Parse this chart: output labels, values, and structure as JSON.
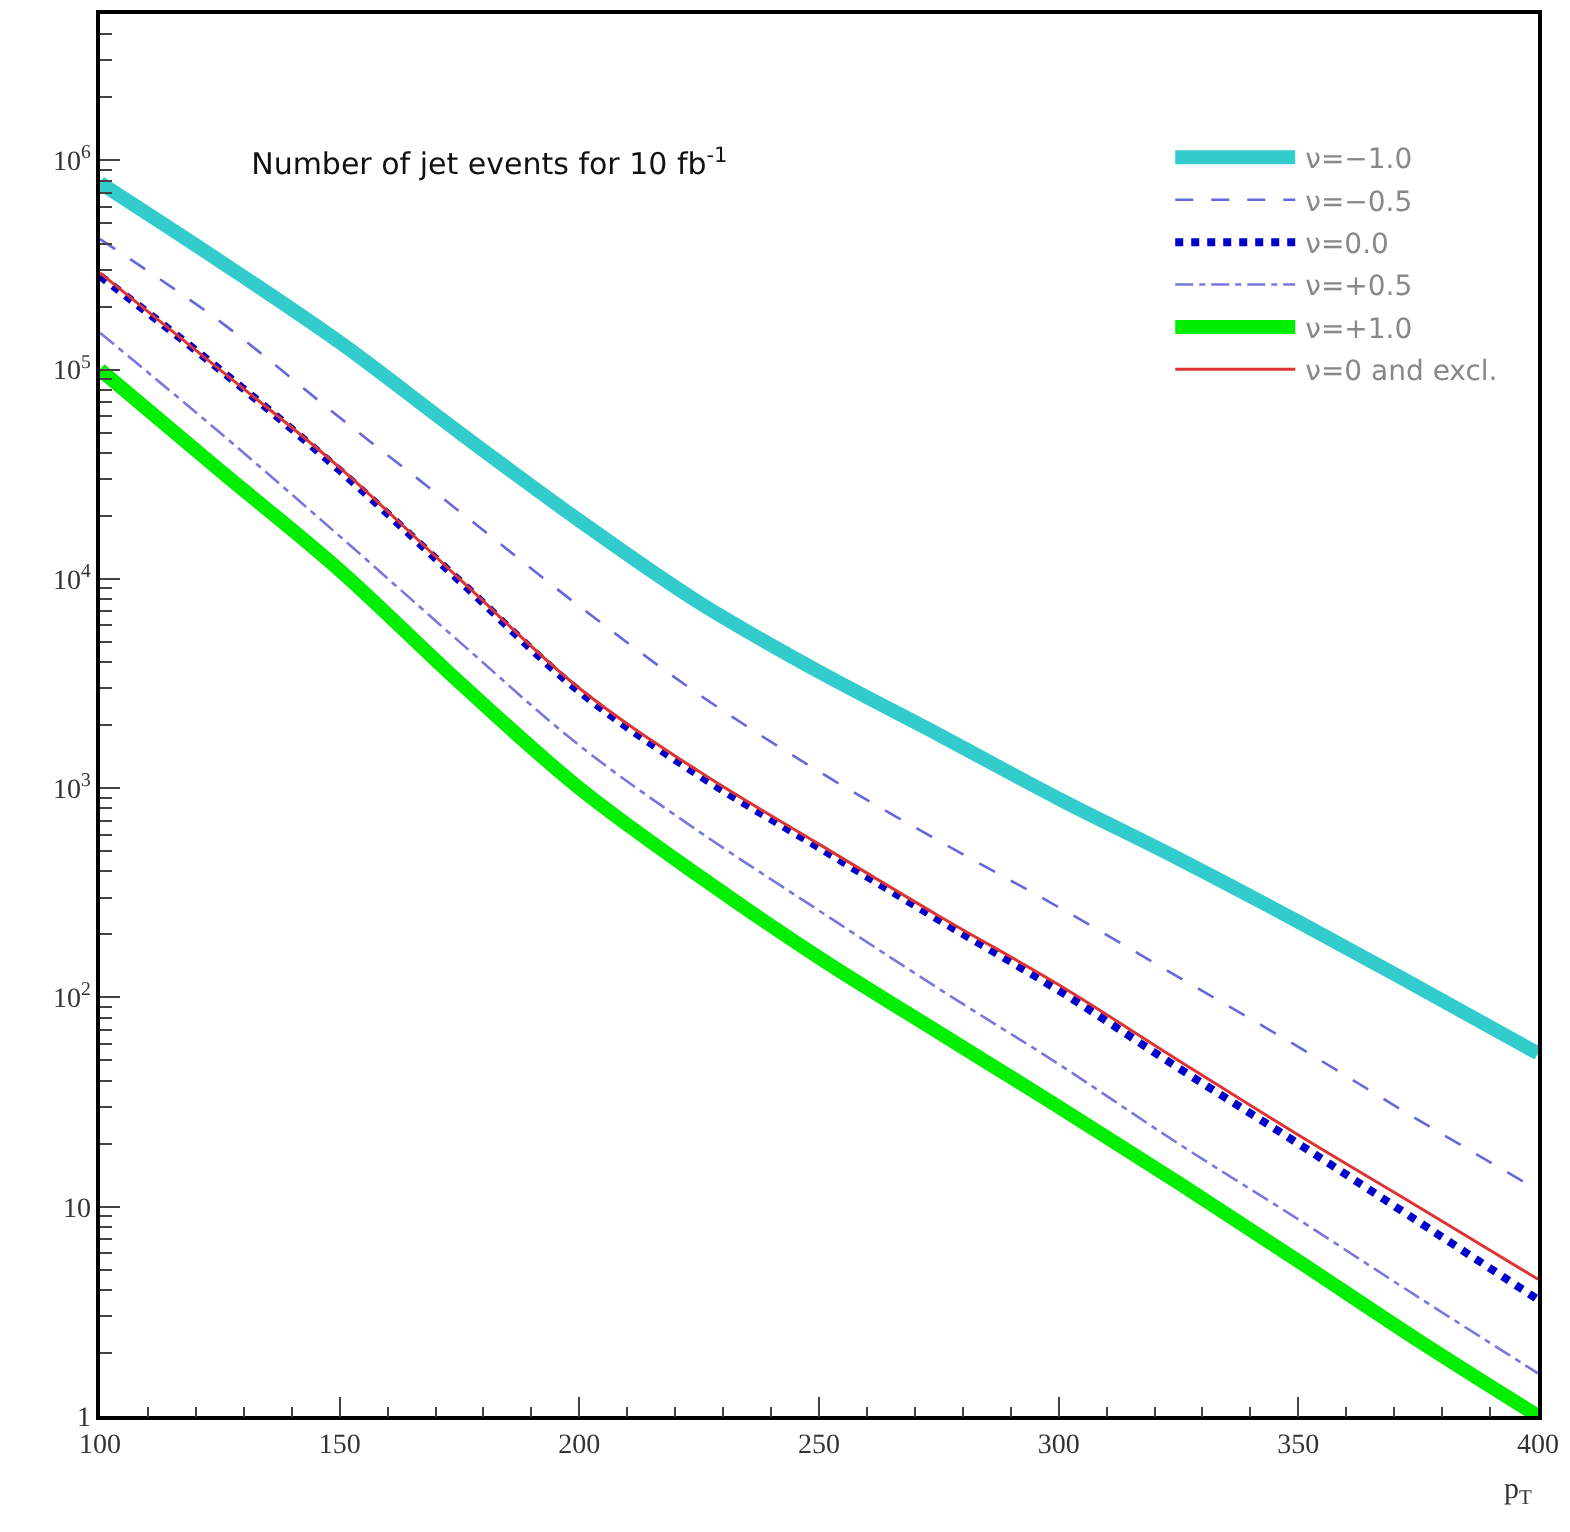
{
  "chart_data": {
    "type": "line",
    "title": "Number of jet events for 10 fb$^{-1}$",
    "xlabel": "p$_{T}$",
    "x": [
      100,
      125,
      150,
      175,
      200,
      225,
      250,
      275,
      300,
      325,
      350,
      375,
      400
    ],
    "series": [
      {
        "name": "ν=−1.0",
        "color": "#33cccc",
        "values": [
          780000,
          330000,
          135000,
          50000,
          19000,
          7700,
          3600,
          1800,
          890,
          460,
          230,
          112,
          54
        ]
      },
      {
        "name": "ν=−0.5",
        "color": "#6666dd",
        "line_style": "dashed",
        "values": [
          420000,
          170000,
          59000,
          21000,
          7400,
          2800,
          1200,
          560,
          270,
          125,
          58,
          26,
          12
        ]
      },
      {
        "name": "ν=0.0",
        "color": "#0000cc",
        "line_style": "dotted",
        "values": [
          280000,
          100000,
          33000,
          9800,
          2900,
          1150,
          520,
          235,
          108,
          46,
          20,
          8.5,
          3.6
        ]
      },
      {
        "name": "ν=+0.5",
        "color": "#7777dd",
        "line_style": "dashdot",
        "values": [
          150000,
          50000,
          16000,
          5000,
          1600,
          620,
          260,
          110,
          48,
          20,
          8.7,
          3.7,
          1.6
        ]
      },
      {
        "name": "ν=+1.0",
        "color": "#00ee00",
        "values": [
          100000,
          33000,
          11000,
          3200,
          1000,
          380,
          155,
          68,
          30,
          13,
          5.5,
          2.3,
          1.0
        ]
      },
      {
        "name": "ν=0 and excl.",
        "color": "#dd3333",
        "values": [
          290000,
          100000,
          34000,
          10000,
          3000,
          1200,
          540,
          245,
          115,
          50,
          22,
          10,
          4.5
        ]
      }
    ],
    "xlim": [
      100,
      400
    ],
    "xticks": [
      100,
      150,
      200,
      250,
      300,
      350,
      400
    ],
    "ylim": [
      1,
      5000000
    ],
    "yticks": [
      1,
      10,
      {
        "value": 100,
        "label": "10$^{2}$"
      },
      {
        "value": 1000,
        "label": "10$^{3}$"
      },
      {
        "value": 10000,
        "label": "10$^{4}$"
      },
      {
        "value": 100000,
        "label": "10$^{5}$"
      },
      {
        "value": 1000000,
        "label": "10$^{6}$"
      }
    ],
    "log": "y",
    "grid": false,
    "legend": "top right",
    "marker": "none"
  }
}
